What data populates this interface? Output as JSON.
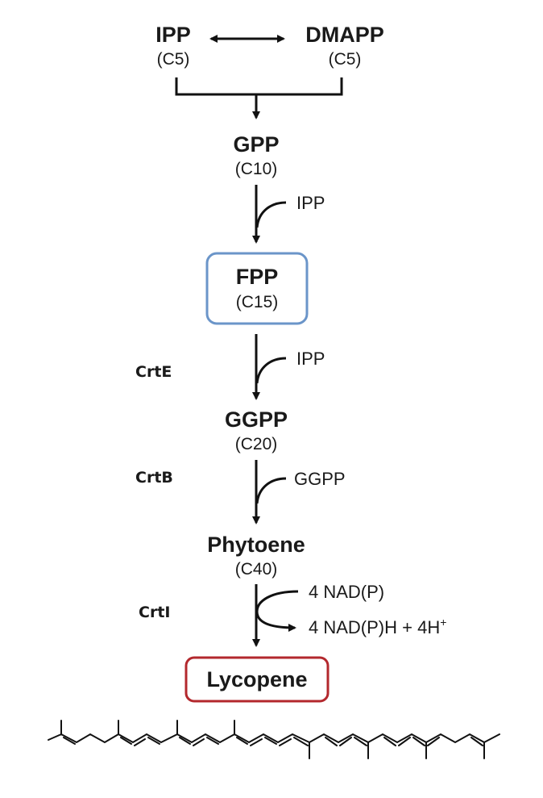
{
  "metabolites": {
    "ipp": {
      "name": "IPP",
      "carbons": "(C5)"
    },
    "dmapp": {
      "name": "DMAPP",
      "carbons": "(C5)"
    },
    "gpp": {
      "name": "GPP",
      "carbons": "(C10)"
    },
    "fpp": {
      "name": "FPP",
      "carbons": "(C15)"
    },
    "ggpp": {
      "name": "GGPP",
      "carbons": "(C20)"
    },
    "phytoene": {
      "name": "Phytoene",
      "carbons": "(C40)"
    },
    "lycopene": {
      "name": "Lycopene"
    }
  },
  "cosubstrates": {
    "step_gpp_fpp": "IPP",
    "step_fpp_ggpp": "IPP",
    "step_ggpp_phytoene": "GGPP",
    "step_phytoene_lycopene_in": "4 NAD(P)",
    "step_phytoene_lycopene_out_main": "4 NAD(P)H + 4H",
    "step_phytoene_lycopene_out_sup": "+"
  },
  "enzymes": {
    "crte": "CrtE",
    "crtb": "CrtB",
    "crti": "CrtI"
  },
  "colors": {
    "fpp_box": "#6b95c9",
    "lycopene_box": "#b3282d",
    "ink": "#111111"
  }
}
